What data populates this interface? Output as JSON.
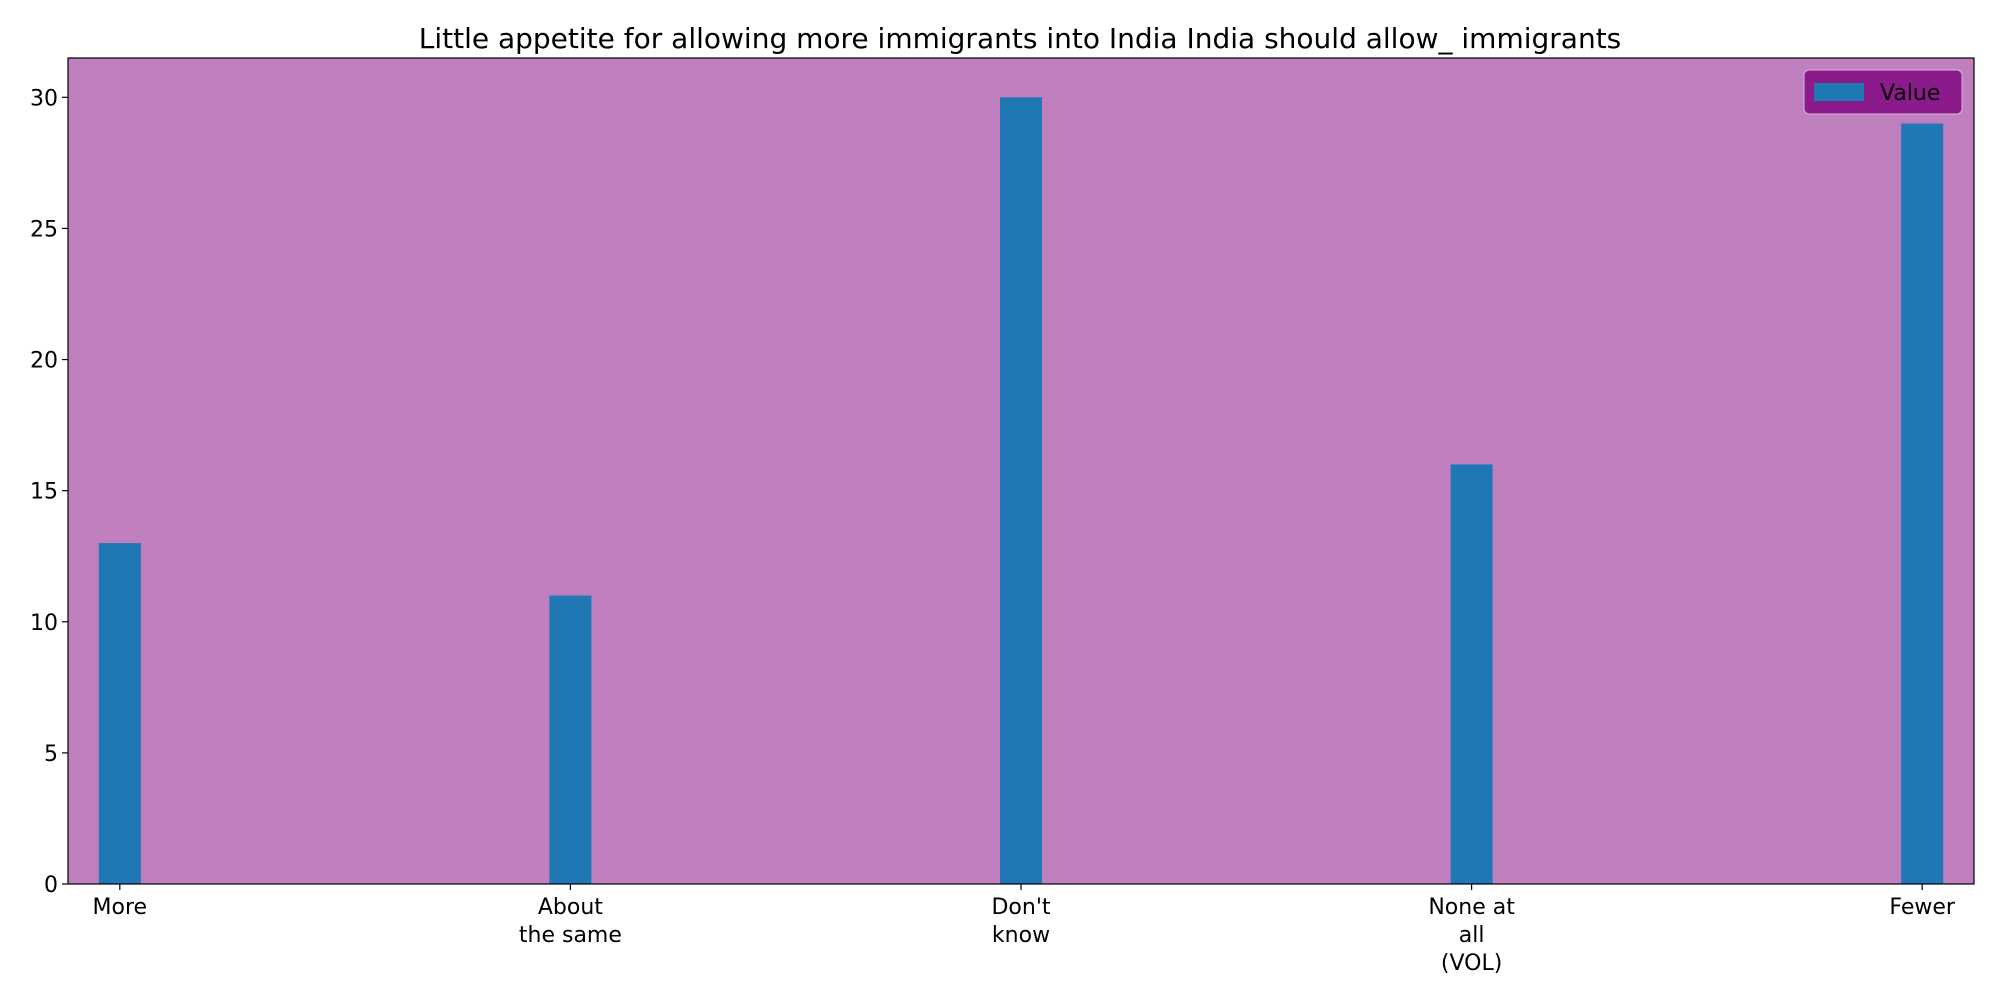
{
  "chart_data": {
    "type": "bar",
    "title": "Little appetite for allowing more immigrants into India India should allow_ immigrants",
    "xlabel": "",
    "ylabel": "",
    "categories": [
      "More",
      "About\nthe same",
      "Don't\nknow",
      "None at\nall\n(VOL)",
      "Fewer"
    ],
    "series": [
      {
        "name": "Value",
        "values": [
          13,
          11,
          30,
          16,
          29
        ],
        "color": "#1f77b4"
      }
    ],
    "ylim": [
      0,
      31.5
    ],
    "yticks": [
      0,
      5,
      10,
      15,
      20,
      25,
      30
    ],
    "grid": false,
    "legend_position": "top-right",
    "colors": {
      "plot_background": "#bf7fbf",
      "legend_background": "#8b1a8b",
      "bar": "#1f77b4"
    }
  }
}
